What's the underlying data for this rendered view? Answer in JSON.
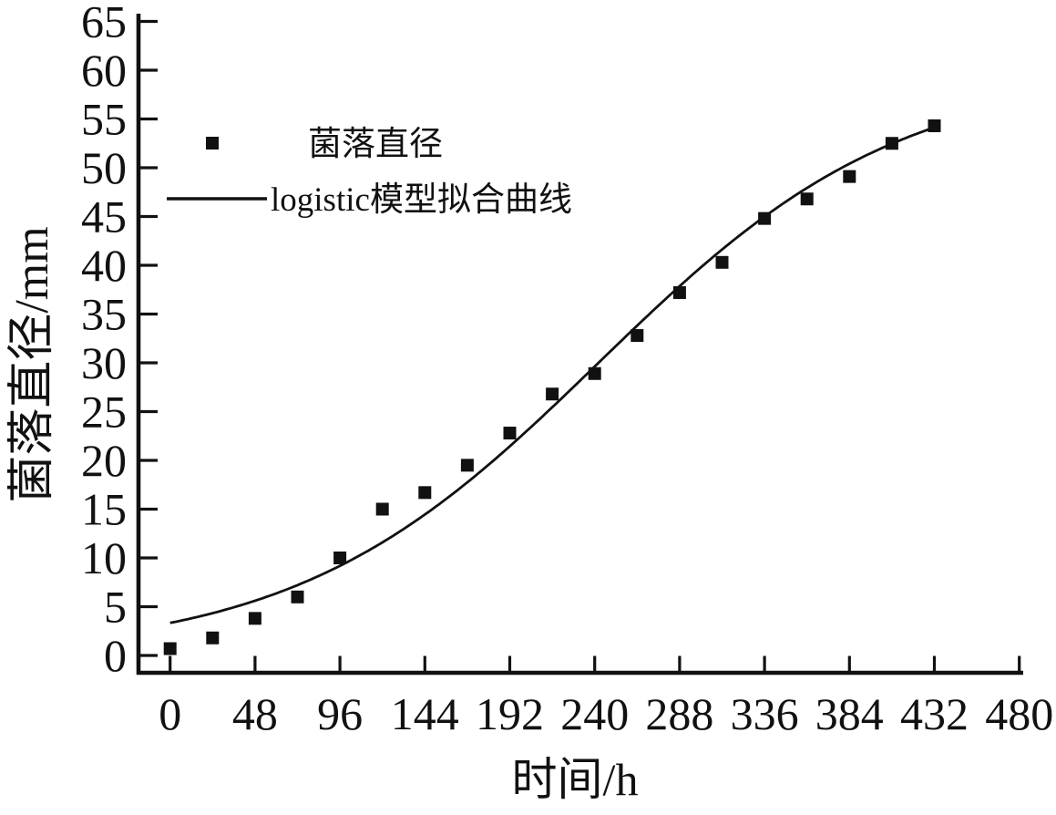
{
  "chart_data": {
    "type": "scatter",
    "title": "",
    "xlabel": "时间/h",
    "ylabel": "菌落直径/mm",
    "xlim": [
      -19,
      483
    ],
    "ylim": [
      -2.5,
      66.5
    ],
    "x_ticks": [
      0,
      48,
      96,
      144,
      192,
      240,
      288,
      336,
      384,
      432,
      480
    ],
    "y_ticks": [
      0,
      5,
      10,
      15,
      20,
      25,
      30,
      35,
      40,
      45,
      50,
      55,
      60,
      65
    ],
    "grid": false,
    "legend_position": "upper-left-inside",
    "series": [
      {
        "name": "菌落直径",
        "type": "scatter",
        "marker": "filled-square",
        "color": "#111111",
        "x": [
          0,
          24,
          48,
          72,
          96,
          120,
          144,
          168,
          192,
          216,
          240,
          264,
          288,
          312,
          336,
          360,
          384,
          408,
          432
        ],
        "y": [
          0.7,
          1.8,
          3.8,
          6.0,
          10.0,
          15.0,
          16.7,
          19.5,
          22.8,
          26.8,
          28.9,
          32.8,
          37.2,
          40.3,
          44.8,
          46.8,
          49.1,
          52.5,
          54.3
        ]
      },
      {
        "name": "logistic模型拟合曲线",
        "type": "line",
        "color": "#111111",
        "fit": {
          "model": "logistic",
          "K": 60,
          "a": 17,
          "r": 0.0117,
          "t_start": 0,
          "t_end": 434
        }
      }
    ]
  },
  "axes": {
    "x_title": "时间/h",
    "y_title": "菌落直径/mm"
  },
  "legend": {
    "item1": "菌落直径",
    "item2": "logistic模型拟合曲线"
  },
  "colors": {
    "ink": "#111111",
    "background": "#ffffff"
  }
}
